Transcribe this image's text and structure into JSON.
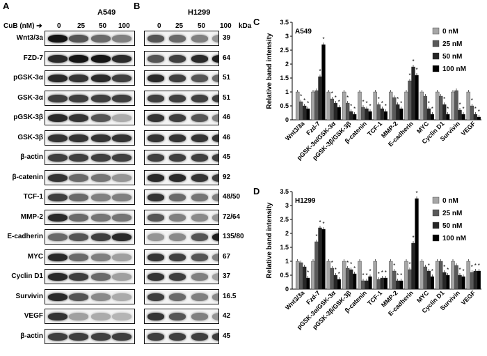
{
  "figure": {
    "panel_a": "A",
    "panel_b": "B",
    "panel_c": "C",
    "panel_d": "D",
    "cell_a": "A549",
    "cell_b": "H1299",
    "cub_label": "CuB (nM)",
    "doses": [
      "0",
      "25",
      "50",
      "100"
    ],
    "kda_header": "kDa"
  },
  "blots": [
    {
      "name": "Wnt3/3a",
      "kda": "39"
    },
    {
      "name": "FZD-7",
      "kda": "64"
    },
    {
      "name": "pGSK-3α",
      "kda": "51"
    },
    {
      "name": "GSK-3α",
      "kda": "51"
    },
    {
      "name": "pGSK-3β",
      "kda": "46"
    },
    {
      "name": "GSK-3β",
      "kda": "46"
    },
    {
      "name": "β-actin",
      "kda": "45"
    },
    {
      "name": "β-catenin",
      "kda": "92"
    },
    {
      "name": "TCF-1",
      "kda": "48/50"
    },
    {
      "name": "MMP-2",
      "kda": "72/64"
    },
    {
      "name": "E-cadherin",
      "kda": "135/80"
    },
    {
      "name": "MYC",
      "kda": "67"
    },
    {
      "name": "Cyclin D1",
      "kda": "37"
    },
    {
      "name": "Survivin",
      "kda": "16.5"
    },
    {
      "name": "VEGF",
      "kda": "42"
    },
    {
      "name": "β-actin",
      "kda": "45"
    }
  ],
  "band_intensity": {
    "A": [
      [
        1,
        0.7,
        0.6,
        0.5
      ],
      [
        0.9,
        1,
        1,
        0.9
      ],
      [
        0.9,
        0.85,
        0.9,
        0.8
      ],
      [
        0.8,
        0.8,
        0.8,
        0.8
      ],
      [
        0.9,
        0.85,
        0.7,
        0.3
      ],
      [
        0.85,
        0.85,
        0.85,
        0.85
      ],
      [
        0.8,
        0.8,
        0.8,
        0.8
      ],
      [
        0.85,
        0.6,
        0.55,
        0.4
      ],
      [
        0.8,
        0.6,
        0.5,
        0.5
      ],
      [
        0.9,
        0.6,
        0.55,
        0.55
      ],
      [
        0.6,
        0.7,
        0.8,
        0.9
      ],
      [
        0.9,
        0.6,
        0.5,
        0.35
      ],
      [
        0.9,
        0.8,
        0.6,
        0.35
      ],
      [
        0.9,
        0.7,
        0.45,
        0.3
      ],
      [
        0.85,
        0.35,
        0.3,
        0.25
      ],
      [
        0.8,
        0.8,
        0.8,
        0.8
      ]
    ],
    "B": [
      [
        0.7,
        0.6,
        0.5,
        0.4
      ],
      [
        0.7,
        0.8,
        0.9,
        0.95
      ],
      [
        0.9,
        0.8,
        0.7,
        0.6
      ],
      [
        0.8,
        0.8,
        0.8,
        0.8
      ],
      [
        0.85,
        0.8,
        0.7,
        0.5
      ],
      [
        0.85,
        0.85,
        0.85,
        0.85
      ],
      [
        0.8,
        0.8,
        0.8,
        0.8
      ],
      [
        0.9,
        0.9,
        0.85,
        0.8
      ],
      [
        0.85,
        0.6,
        0.55,
        0.5
      ],
      [
        0.7,
        0.5,
        0.45,
        0.4
      ],
      [
        0.4,
        0.45,
        0.7,
        0.95
      ],
      [
        0.85,
        0.8,
        0.7,
        0.5
      ],
      [
        0.85,
        0.8,
        0.5,
        0.35
      ],
      [
        0.8,
        0.6,
        0.5,
        0.45
      ],
      [
        0.85,
        0.7,
        0.5,
        0.4
      ],
      [
        0.8,
        0.8,
        0.8,
        0.8
      ]
    ]
  },
  "chart_data": [
    {
      "type": "bar",
      "panel": "C",
      "cell_line": "A549",
      "ylabel": "Relative band intensity",
      "ylim": [
        0,
        3.5
      ],
      "yticks": [
        0,
        0.5,
        1,
        1.5,
        2,
        2.5,
        3,
        3.5
      ],
      "categories": [
        "Wnt3/3a",
        "Fzd-7",
        "pGSK-3α/GSK-3α",
        "pGSK-3β/GSK-3β",
        "β-catenin",
        "TCF-1",
        "MMP-2",
        "E-cadherin",
        "MYC",
        "Cyclin D1",
        "Survivin",
        "VEGF"
      ],
      "legend_position": "top-right",
      "series": [
        {
          "name": "0 nM",
          "color": "#a6a6a6",
          "values": [
            1,
            1,
            1,
            1,
            1,
            1,
            1,
            1,
            1,
            1,
            1,
            1
          ]
        },
        {
          "name": "25 nM",
          "color": "#595959",
          "values": [
            0.65,
            1.05,
            0.75,
            0.6,
            0.45,
            0.55,
            0.8,
            1.4,
            0.85,
            0.85,
            1.05,
            0.5
          ]
        },
        {
          "name": "50 nM",
          "color": "#262626",
          "values": [
            0.5,
            1.55,
            0.6,
            0.3,
            0.4,
            0.4,
            0.55,
            1.9,
            0.4,
            0.55,
            0.35,
            0.2
          ]
        },
        {
          "name": "100 nM",
          "color": "#000000",
          "values": [
            0.4,
            2.7,
            0.45,
            0.2,
            0.3,
            0.3,
            0.4,
            1.6,
            0.2,
            0.2,
            0.2,
            0.1
          ]
        }
      ]
    },
    {
      "type": "bar",
      "panel": "D",
      "cell_line": "H1299",
      "ylabel": "Relative band intensity",
      "ylim": [
        0,
        3.5
      ],
      "yticks": [
        0,
        0.5,
        1,
        1.5,
        2,
        2.5,
        3,
        3.5
      ],
      "categories": [
        "Wnt3/3a",
        "Fzd-7",
        "pGSK-3α/GSK-3α",
        "pGSK-3β/GSK-3β",
        "β-catenin",
        "TCF-1",
        "MMP-2",
        "E-cadherin",
        "MYC",
        "Cyclin D1",
        "Survivin",
        "VEGF"
      ],
      "legend_position": "top-right",
      "series": [
        {
          "name": "0 nM",
          "color": "#a6a6a6",
          "values": [
            1,
            1,
            1,
            1,
            1,
            1,
            1,
            1,
            1,
            1,
            1,
            1
          ]
        },
        {
          "name": "25 nM",
          "color": "#595959",
          "values": [
            0.95,
            1.7,
            0.75,
            0.75,
            0.3,
            0.35,
            0.65,
            0.7,
            0.8,
            1.0,
            0.85,
            0.6
          ]
        },
        {
          "name": "50 nM",
          "color": "#262626",
          "values": [
            0.8,
            2.2,
            0.5,
            0.7,
            0.3,
            0.4,
            0.3,
            1.65,
            0.65,
            0.6,
            0.5,
            0.65
          ]
        },
        {
          "name": "100 nM",
          "color": "#000000",
          "values": [
            0.4,
            2.15,
            0.35,
            0.55,
            0.45,
            0.4,
            0.3,
            3.25,
            0.45,
            0.5,
            0.45,
            0.65
          ]
        }
      ]
    }
  ]
}
